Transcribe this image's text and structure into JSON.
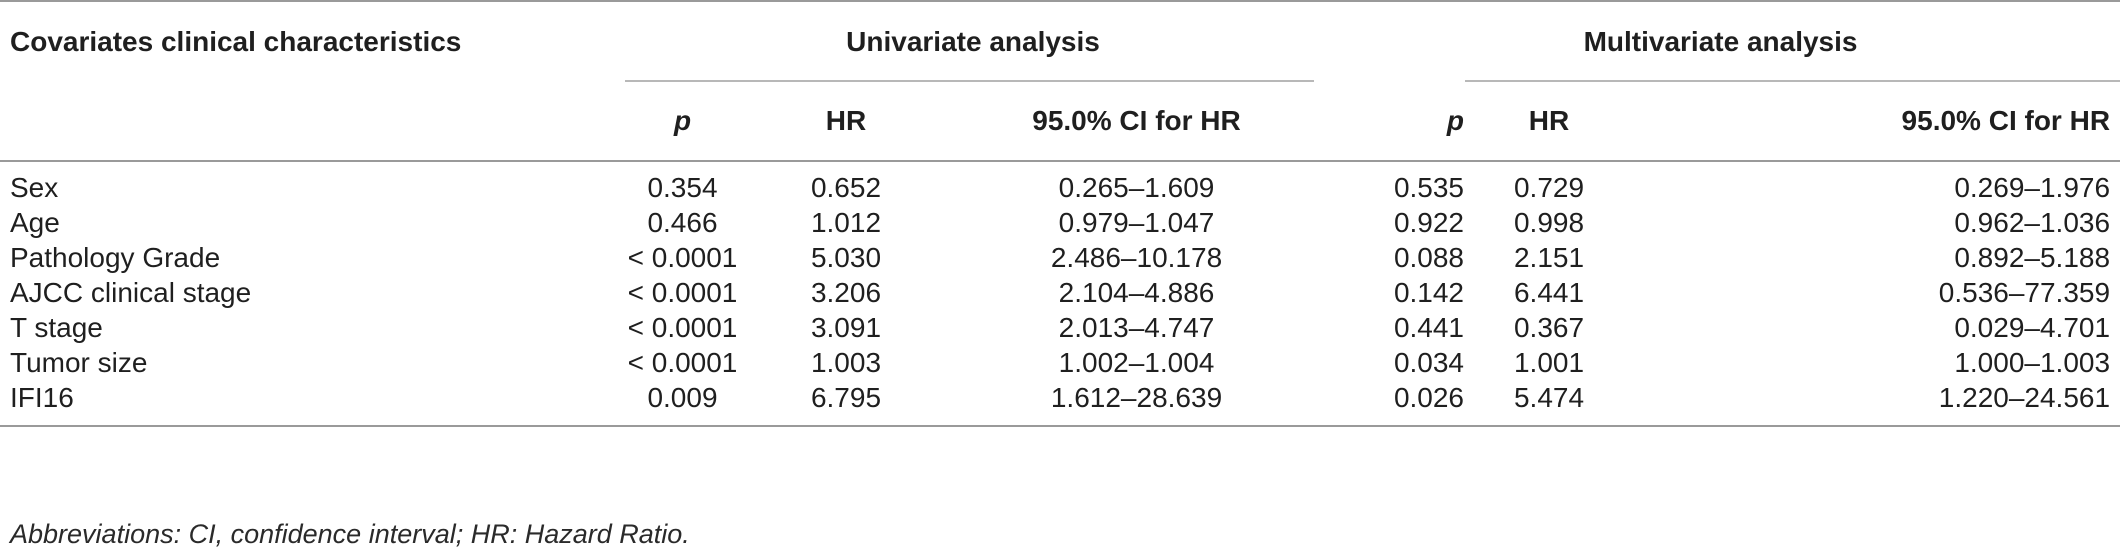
{
  "header": {
    "covariates_label": "Covariates clinical characteristics",
    "univariate_label": "Univariate analysis",
    "multivariate_label": "Multivariate analysis",
    "col_p": "p",
    "col_hr": "HR",
    "col_ci": "95.0% CI for HR"
  },
  "rows": [
    {
      "label": "Sex",
      "u_p": "0.354",
      "u_hr": "0.652",
      "u_ci": "0.265–1.609",
      "m_p": "0.535",
      "m_hr": "0.729",
      "m_ci": "0.269–1.976"
    },
    {
      "label": "Age",
      "u_p": "0.466",
      "u_hr": "1.012",
      "u_ci": "0.979–1.047",
      "m_p": "0.922",
      "m_hr": "0.998",
      "m_ci": "0.962–1.036"
    },
    {
      "label": "Pathology Grade",
      "u_p": "< 0.0001",
      "u_hr": "5.030",
      "u_ci": "2.486–10.178",
      "m_p": "0.088",
      "m_hr": "2.151",
      "m_ci": "0.892–5.188"
    },
    {
      "label": "AJCC clinical stage",
      "u_p": "< 0.0001",
      "u_hr": "3.206",
      "u_ci": "2.104–4.886",
      "m_p": "0.142",
      "m_hr": "6.441",
      "m_ci": "0.536–77.359"
    },
    {
      "label": "T stage",
      "u_p": "< 0.0001",
      "u_hr": "3.091",
      "u_ci": "2.013–4.747",
      "m_p": "0.441",
      "m_hr": "0.367",
      "m_ci": "0.029–4.701"
    },
    {
      "label": "Tumor size",
      "u_p": "< 0.0001",
      "u_hr": "1.003",
      "u_ci": "1.002–1.004",
      "m_p": "0.034",
      "m_hr": "1.001",
      "m_ci": "1.000–1.003"
    },
    {
      "label": "IFI16",
      "u_p": "0.009",
      "u_hr": "6.795",
      "u_ci": "1.612–28.639",
      "m_p": "0.026",
      "m_hr": "5.474",
      "m_ci": "1.220–24.561"
    }
  ],
  "footnote": "Abbreviations: CI, confidence interval; HR: Hazard Ratio.",
  "colors": {
    "rule": "#9a9a9a",
    "text": "#1f1f1f"
  }
}
